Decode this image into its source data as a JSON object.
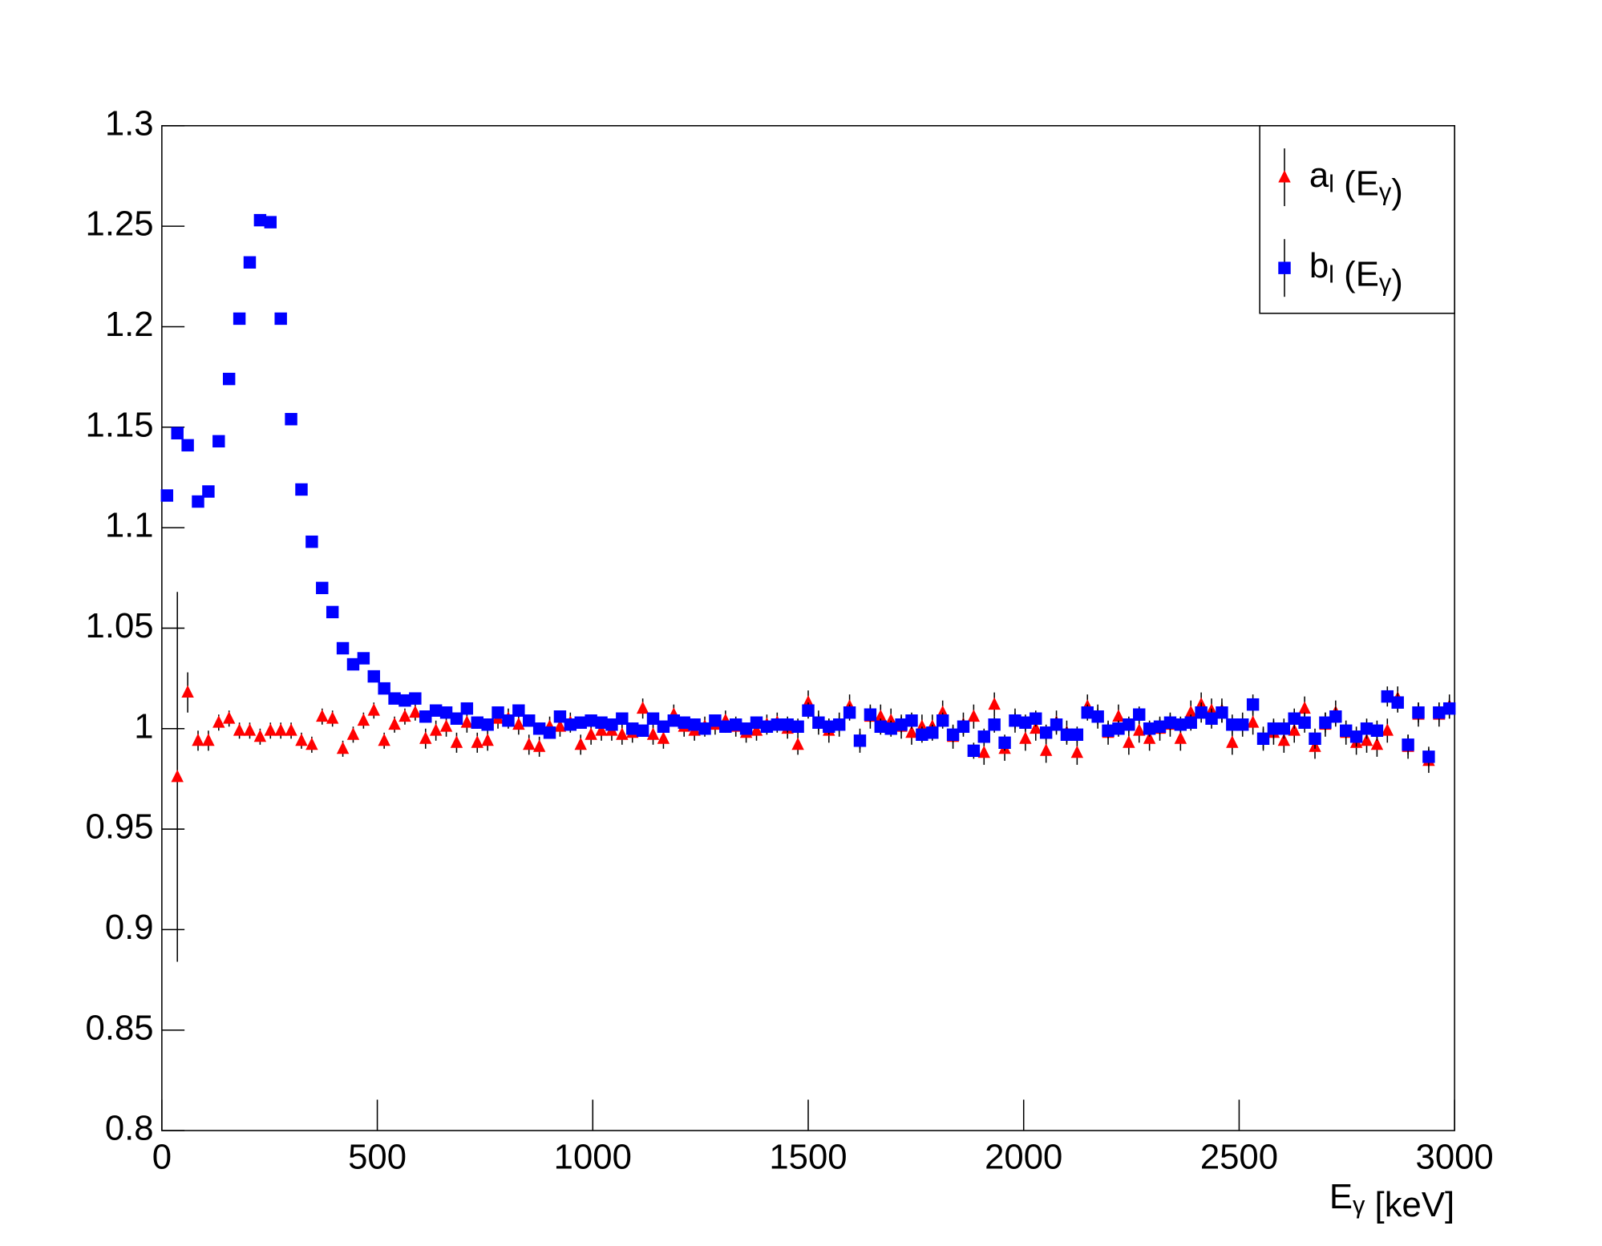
{
  "chart_data": {
    "type": "scatter",
    "x_label": [
      "E",
      {
        "sub": "γ"
      },
      " [keV]"
    ],
    "xlim": [
      0,
      3000
    ],
    "xticks": [
      0,
      500,
      1000,
      1500,
      2000,
      2500,
      3000
    ],
    "ylim": [
      0.8,
      1.3
    ],
    "yticks": [
      0.8,
      0.85,
      0.9,
      0.95,
      1,
      1.05,
      1.1,
      1.15,
      1.2,
      1.25,
      1.3
    ],
    "legend": "upper right",
    "x": [
      12,
      36,
      60,
      84,
      108,
      132,
      156,
      180,
      204,
      228,
      252,
      276,
      300,
      324,
      348,
      372,
      396,
      420,
      444,
      468,
      492,
      516,
      540,
      564,
      588,
      612,
      636,
      660,
      684,
      708,
      732,
      756,
      780,
      804,
      828,
      852,
      876,
      900,
      924,
      948,
      972,
      996,
      1020,
      1044,
      1068,
      1092,
      1116,
      1140,
      1164,
      1188,
      1212,
      1236,
      1260,
      1284,
      1308,
      1332,
      1356,
      1380,
      1404,
      1428,
      1452,
      1476,
      1500,
      1524,
      1548,
      1572,
      1596,
      1620,
      1644,
      1668,
      1692,
      1716,
      1740,
      1764,
      1788,
      1812,
      1836,
      1860,
      1884,
      1908,
      1932,
      1956,
      1980,
      2004,
      2028,
      2052,
      2076,
      2100,
      2124,
      2148,
      2172,
      2196,
      2220,
      2244,
      2268,
      2292,
      2316,
      2340,
      2364,
      2388,
      2412,
      2436,
      2460,
      2484,
      2508,
      2532,
      2556,
      2580,
      2604,
      2628,
      2652,
      2676,
      2700,
      2724,
      2748,
      2772,
      2796,
      2820,
      2844,
      2868,
      2892,
      2916,
      2940,
      2964,
      2988
    ],
    "series": [
      {
        "name": [
          "a",
          {
            "sub": "l"
          },
          " (E",
          {
            "sub": "γ"
          },
          ")"
        ],
        "color": "#ff0000",
        "marker": "triangle",
        "values": [
          null,
          0.976,
          1.018,
          0.994,
          0.994,
          1.003,
          1.005,
          0.999,
          0.999,
          0.996,
          0.999,
          0.999,
          0.999,
          0.994,
          0.992,
          1.006,
          1.005,
          0.99,
          0.997,
          1.004,
          1.009,
          0.994,
          1.002,
          1.006,
          1.008,
          0.995,
          0.999,
          1.001,
          0.993,
          1.003,
          0.993,
          0.994,
          1.005,
          1.005,
          1.002,
          0.992,
          0.991,
          1.001,
          1.001,
          1.003,
          0.992,
          0.997,
          0.999,
          0.999,
          0.997,
          0.998,
          1.01,
          0.997,
          0.995,
          1.007,
          1.001,
          0.999,
          1.001,
          1.002,
          1.004,
          1.001,
          0.998,
          0.999,
          1.002,
          1.003,
          1.0,
          0.992,
          1.013,
          1.003,
          0.999,
          1.002,
          1.011,
          0.994,
          1.006,
          1.006,
          1.004,
          1.001,
          0.998,
          1.001,
          1.001,
          1.008,
          0.996,
          1.002,
          1.006,
          0.988,
          1.012,
          0.99,
          1.004,
          0.995,
          1.0,
          0.989,
          1.003,
          0.998,
          0.988,
          1.011,
          1.006,
          0.998,
          1.006,
          0.993,
          0.999,
          0.995,
          1.0,
          1.002,
          0.995,
          1.008,
          1.012,
          1.009,
          1.009,
          0.993,
          1.002,
          1.003,
          0.995,
          0.998,
          0.994,
          0.999,
          1.01,
          0.991,
          1.002,
          1.008,
          0.998,
          0.993,
          0.994,
          0.992,
          0.999,
          1.015,
          0.991,
          1.007,
          0.984,
          1.007,
          1.011
        ],
        "errors": [
          null,
          0.092,
          0.01,
          0.005,
          0.005,
          0.004,
          0.004,
          0.004,
          0.004,
          0.004,
          0.004,
          0.004,
          0.004,
          0.004,
          0.004,
          0.004,
          0.004,
          0.004,
          0.004,
          0.004,
          0.004,
          0.004,
          0.004,
          0.004,
          0.004,
          0.005,
          0.005,
          0.005,
          0.005,
          0.005,
          0.005,
          0.005,
          0.005,
          0.005,
          0.005,
          0.005,
          0.005,
          0.005,
          0.005,
          0.005,
          0.005,
          0.005,
          0.005,
          0.005,
          0.005,
          0.005,
          0.005,
          0.005,
          0.005,
          0.005,
          0.005,
          0.005,
          0.005,
          0.005,
          0.005,
          0.005,
          0.005,
          0.005,
          0.005,
          0.005,
          0.005,
          0.005,
          0.006,
          0.006,
          0.006,
          0.006,
          0.006,
          0.006,
          0.006,
          0.006,
          0.006,
          0.006,
          0.006,
          0.006,
          0.006,
          0.006,
          0.006,
          0.006,
          0.006,
          0.006,
          0.006,
          0.006,
          0.006,
          0.006,
          0.006,
          0.006,
          0.006,
          0.006,
          0.006,
          0.006,
          0.006,
          0.006,
          0.006,
          0.006,
          0.006,
          0.006,
          0.006,
          0.006,
          0.006,
          0.006,
          0.006,
          0.006,
          0.006,
          0.006,
          0.006,
          0.006,
          0.006,
          0.006,
          0.006,
          0.006,
          0.006,
          0.006,
          0.006,
          0.006,
          0.006,
          0.006,
          0.006,
          0.006,
          0.006,
          0.006,
          0.006,
          0.006,
          0.006,
          0.006,
          0.006
        ]
      },
      {
        "name": [
          "b",
          {
            "sub": "l"
          },
          " (E",
          {
            "sub": "γ"
          },
          ")"
        ],
        "color": "#0000ff",
        "marker": "square",
        "values": [
          1.116,
          1.147,
          1.141,
          1.113,
          1.118,
          1.143,
          1.174,
          1.204,
          1.232,
          1.253,
          1.252,
          1.204,
          1.154,
          1.119,
          1.093,
          1.07,
          1.058,
          1.04,
          1.032,
          1.035,
          1.026,
          1.02,
          1.015,
          1.014,
          1.015,
          1.006,
          1.009,
          1.008,
          1.005,
          1.01,
          1.003,
          1.002,
          1.008,
          1.004,
          1.009,
          1.004,
          1.0,
          0.998,
          1.006,
          1.002,
          1.003,
          1.004,
          1.003,
          1.002,
          1.005,
          1.0,
          0.999,
          1.005,
          1.001,
          1.004,
          1.003,
          1.002,
          1.0,
          1.004,
          1.001,
          1.002,
          1.0,
          1.003,
          1.001,
          1.002,
          1.002,
          1.001,
          1.009,
          1.003,
          1.001,
          1.002,
          1.008,
          0.994,
          1.007,
          1.001,
          1.0,
          1.002,
          1.004,
          0.997,
          0.998,
          1.004,
          0.997,
          1.001,
          0.989,
          0.996,
          1.002,
          0.993,
          1.004,
          1.003,
          1.005,
          0.998,
          1.002,
          0.997,
          0.997,
          1.008,
          1.006,
          0.999,
          1.0,
          1.002,
          1.007,
          1.0,
          1.001,
          1.003,
          1.002,
          1.003,
          1.008,
          1.005,
          1.008,
          1.002,
          1.002,
          1.012,
          0.995,
          1.0,
          1.0,
          1.005,
          1.003,
          0.995,
          1.003,
          1.006,
          0.999,
          0.996,
          1.0,
          0.999,
          1.016,
          1.013,
          0.992,
          1.008,
          0.986,
          1.008,
          1.01
        ],
        "errors": [
          0.001,
          0.001,
          0.001,
          0.001,
          0.001,
          0.001,
          0.001,
          0.001,
          0.001,
          0.001,
          0.001,
          0.001,
          0.001,
          0.001,
          0.001,
          0.001,
          0.001,
          0.001,
          0.001,
          0.001,
          0.001,
          0.001,
          0.001,
          0.001,
          0.001,
          0.002,
          0.002,
          0.002,
          0.002,
          0.002,
          0.003,
          0.003,
          0.003,
          0.003,
          0.003,
          0.003,
          0.003,
          0.003,
          0.003,
          0.003,
          0.003,
          0.003,
          0.003,
          0.003,
          0.003,
          0.003,
          0.003,
          0.003,
          0.003,
          0.003,
          0.003,
          0.003,
          0.003,
          0.003,
          0.003,
          0.003,
          0.003,
          0.003,
          0.003,
          0.003,
          0.004,
          0.004,
          0.004,
          0.004,
          0.004,
          0.004,
          0.004,
          0.004,
          0.004,
          0.004,
          0.004,
          0.004,
          0.004,
          0.004,
          0.004,
          0.004,
          0.004,
          0.004,
          0.004,
          0.004,
          0.004,
          0.004,
          0.004,
          0.004,
          0.004,
          0.004,
          0.004,
          0.004,
          0.004,
          0.004,
          0.004,
          0.004,
          0.004,
          0.004,
          0.004,
          0.004,
          0.004,
          0.004,
          0.004,
          0.004,
          0.005,
          0.005,
          0.005,
          0.005,
          0.005,
          0.005,
          0.005,
          0.005,
          0.005,
          0.005,
          0.005,
          0.005,
          0.005,
          0.005,
          0.005,
          0.005,
          0.005,
          0.005,
          0.005,
          0.005,
          0.005,
          0.005,
          0.005,
          0.005,
          0.005
        ]
      }
    ]
  }
}
